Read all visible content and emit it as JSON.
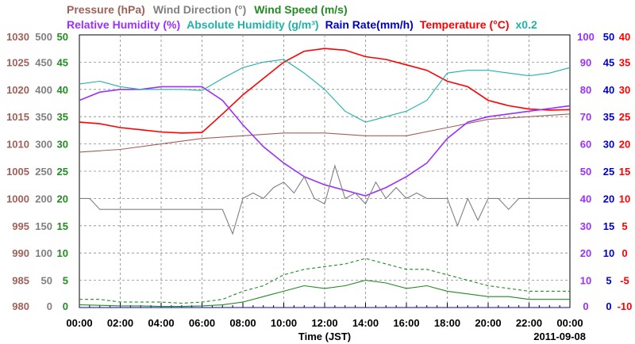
{
  "chart_data": {
    "type": "line",
    "date_label": "2011-09-08",
    "xlabel": "Time (JST)",
    "x_ticks": [
      "00:00",
      "02:00",
      "04:00",
      "06:00",
      "08:00",
      "10:00",
      "12:00",
      "14:00",
      "16:00",
      "18:00",
      "20:00",
      "22:00",
      "00:00"
    ],
    "x_range_hours": [
      0,
      24
    ],
    "grid": true,
    "legend": {
      "row1": [
        {
          "key": "pressure",
          "label": "Pressure (hPa)",
          "color": "#a0605a"
        },
        {
          "key": "wind_dir",
          "label": "Wind Direction (°)",
          "color": "#808080"
        },
        {
          "key": "wind_speed",
          "label": "Wind Speed (m/s)",
          "color": "#228b22"
        }
      ],
      "row2": [
        {
          "key": "rel_hum",
          "label": "Relative Humidity (%)",
          "color": "#9b30ff"
        },
        {
          "key": "abs_hum",
          "label": "Absolute Humidity (g/m³)",
          "color": "#20b2aa"
        },
        {
          "key": "rain",
          "label": "Rain Rate(mm/h)",
          "color": "#0000cd"
        },
        {
          "key": "temp",
          "label": "Temperature (°C)",
          "color": "#ff0000"
        },
        {
          "key": "abs_scale",
          "label": "x0.2",
          "color": "#20b2aa"
        }
      ]
    },
    "axes": {
      "pressure": {
        "color": "#a0605a",
        "min": 980,
        "max": 1030,
        "ticks": [
          "1030",
          "1025",
          "1020",
          "1015",
          "1010",
          "1005",
          "1000",
          "995",
          "990",
          "985",
          "980"
        ]
      },
      "wind_dir": {
        "color": "#808080",
        "min": 0,
        "max": 500,
        "ticks": [
          "500",
          "450",
          "400",
          "350",
          "300",
          "250",
          "200",
          "150",
          "100",
          "50",
          "0"
        ]
      },
      "wind_speed": {
        "color": "#228b22",
        "min": 0,
        "max": 50,
        "ticks": [
          "50",
          "45",
          "40",
          "35",
          "30",
          "25",
          "20",
          "15",
          "10",
          "5",
          "0"
        ]
      },
      "rel_hum": {
        "color": "#9b30ff",
        "min": 0,
        "max": 100,
        "ticks": [
          "100",
          "90",
          "80",
          "70",
          "60",
          "50",
          "40",
          "30",
          "20",
          "10",
          "0"
        ]
      },
      "rain": {
        "color": "#0000cd",
        "min": 0,
        "max": 50,
        "ticks": [
          "50",
          "45",
          "40",
          "35",
          "30",
          "25",
          "20",
          "15",
          "10",
          "5",
          "0"
        ]
      },
      "temp": {
        "color": "#ff0000",
        "min": -10,
        "max": 40,
        "ticks": [
          "40",
          "35",
          "30",
          "25",
          "20",
          "15",
          "10",
          "5",
          "0",
          "-5",
          "-10"
        ]
      }
    },
    "series": [
      {
        "key": "pressure",
        "name": "Pressure (hPa)",
        "color": "#a0605a",
        "x": [
          0,
          2,
          4,
          6,
          8,
          10,
          12,
          14,
          16,
          18,
          20,
          22,
          24
        ],
        "y": [
          1008.5,
          1009,
          1010,
          1011,
          1011.5,
          1012,
          1012,
          1011.5,
          1011.5,
          1013,
          1014.5,
          1015,
          1015.5
        ]
      },
      {
        "key": "temp",
        "name": "Temperature (°C)",
        "color": "#ff0000",
        "x": [
          0,
          1,
          2,
          3,
          4,
          5,
          6,
          7,
          8,
          9,
          10,
          11,
          12,
          13,
          14,
          15,
          16,
          17,
          18,
          19,
          20,
          21,
          22,
          23,
          24
        ],
        "y": [
          24,
          23.7,
          23,
          22.6,
          22.2,
          22,
          22.1,
          25.5,
          29,
          32,
          35,
          37,
          37.5,
          37.2,
          36,
          35.5,
          34.5,
          33.5,
          31.5,
          30.5,
          28,
          27,
          26.4,
          26.2,
          26.3
        ]
      },
      {
        "key": "rel_hum",
        "name": "Relative Humidity (%)",
        "color": "#9b30ff",
        "x": [
          0,
          1,
          2,
          3,
          4,
          5,
          6,
          7,
          8,
          9,
          10,
          11,
          12,
          13,
          14,
          15,
          16,
          17,
          18,
          19,
          20,
          21,
          22,
          23,
          24
        ],
        "y": [
          76,
          79,
          80,
          80,
          81,
          81,
          81,
          76,
          67,
          59,
          53,
          48,
          45,
          43,
          41,
          44,
          48,
          53,
          62,
          68,
          70,
          71,
          72,
          73,
          74
        ]
      },
      {
        "key": "abs_hum",
        "name": "Absolute Humidity (g/m³)",
        "color": "#20b2aa",
        "x": [
          0,
          1,
          2,
          3,
          4,
          5,
          6,
          7,
          8,
          9,
          10,
          11,
          12,
          13,
          14,
          15,
          16,
          17,
          18,
          19,
          20,
          21,
          22,
          23,
          24
        ],
        "y": [
          41,
          41.5,
          40.5,
          40,
          40,
          40,
          39.8,
          42,
          44,
          45,
          45.5,
          43,
          40,
          36,
          34,
          35,
          36,
          38,
          43,
          43.5,
          43.5,
          43,
          42.5,
          43,
          44
        ]
      },
      {
        "key": "wind_dir",
        "name": "Wind Direction (°)",
        "color": "#808080",
        "x": [
          0,
          0.5,
          1,
          2,
          3,
          4,
          5,
          6,
          7,
          7.5,
          8,
          8.5,
          9,
          9.5,
          10,
          10.5,
          11,
          11.5,
          12,
          12.5,
          13,
          13.5,
          14,
          14.5,
          15,
          15.5,
          16,
          16.5,
          17,
          17.5,
          18,
          18.5,
          19,
          19.5,
          20,
          20.5,
          21,
          21.5,
          22,
          22.5,
          23,
          23.5,
          24
        ],
        "y": [
          200,
          200,
          180,
          180,
          180,
          180,
          180,
          180,
          180,
          135,
          200,
          210,
          200,
          220,
          230,
          210,
          240,
          200,
          190,
          260,
          200,
          210,
          190,
          230,
          200,
          220,
          200,
          210,
          200,
          200,
          200,
          150,
          200,
          160,
          200,
          200,
          180,
          200,
          200,
          200,
          200,
          200,
          200
        ]
      },
      {
        "key": "wind_speed",
        "name": "Wind Speed (m/s)",
        "color": "#228b22",
        "x": [
          0,
          1,
          2,
          3,
          4,
          5,
          6,
          7,
          8,
          9,
          10,
          11,
          12,
          13,
          14,
          15,
          16,
          17,
          18,
          19,
          20,
          21,
          22,
          23,
          24
        ],
        "y": [
          0.5,
          0.4,
          0.3,
          0.3,
          0.2,
          0.2,
          0.3,
          0.5,
          1,
          2,
          3,
          4,
          3.5,
          4,
          5,
          4.5,
          3.5,
          4,
          3,
          2.5,
          2,
          2,
          1.5,
          1.5,
          1.5
        ]
      },
      {
        "key": "wind_gust",
        "name": "Wind Speed (m/s)",
        "color": "#228b22",
        "dash": true,
        "x": [
          0,
          1,
          2,
          3,
          4,
          5,
          6,
          7,
          8,
          9,
          10,
          11,
          12,
          13,
          14,
          15,
          16,
          17,
          18,
          19,
          20,
          21,
          22,
          23,
          24
        ],
        "y": [
          1.5,
          1.5,
          1,
          1,
          1,
          0.8,
          1,
          1.5,
          3,
          4,
          6,
          7,
          7.5,
          8,
          9,
          8,
          7,
          7,
          6,
          5,
          4,
          3.5,
          3,
          3,
          3
        ]
      },
      {
        "key": "rain",
        "name": "Rain Rate(mm/h)",
        "color": "#0000cd",
        "x": [
          0,
          24
        ],
        "y": [
          0,
          0
        ]
      }
    ]
  }
}
